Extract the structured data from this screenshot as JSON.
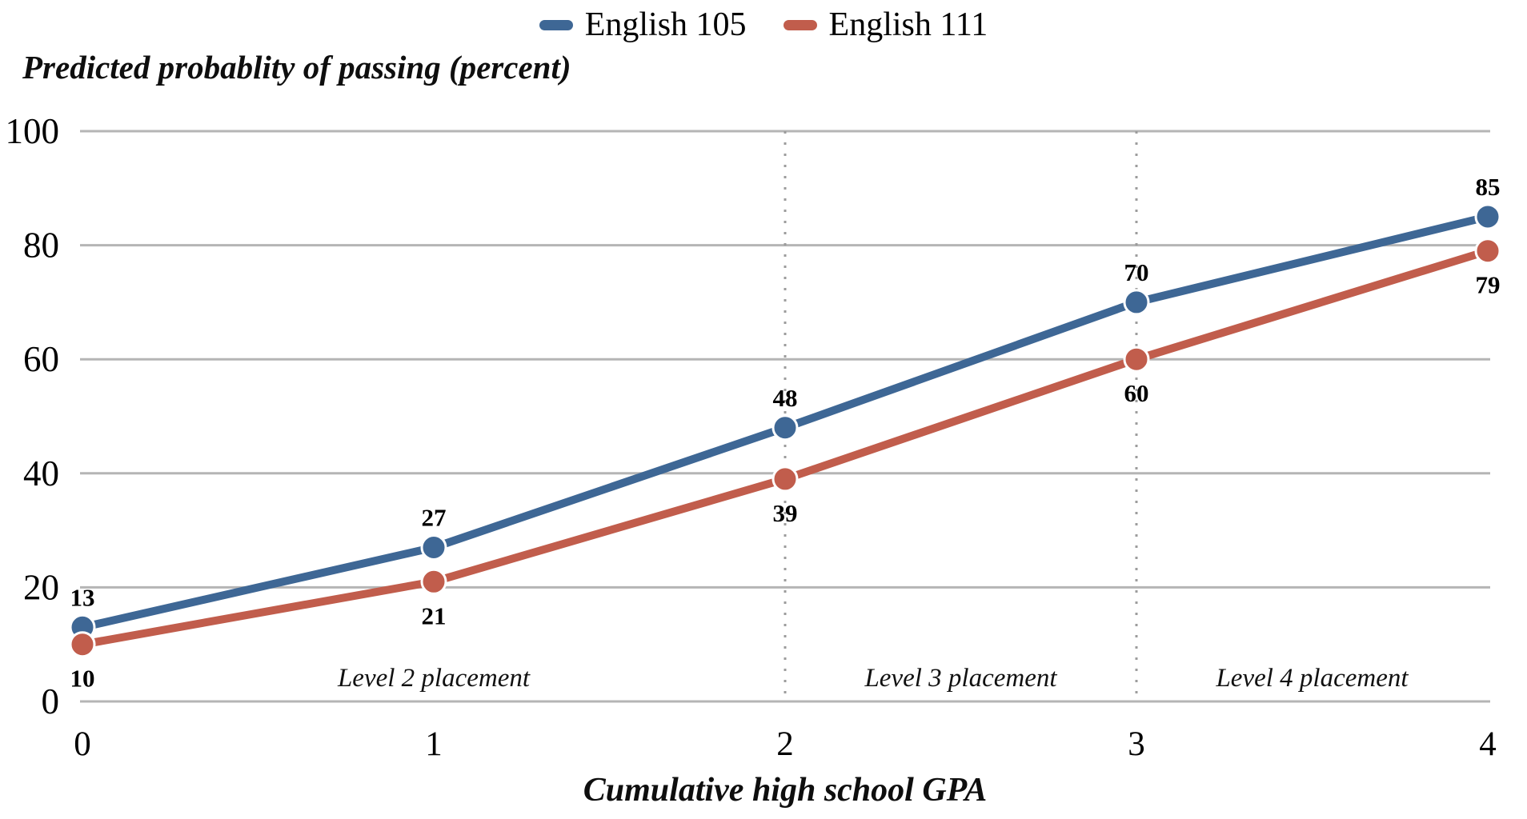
{
  "colors": {
    "grid": "#b5b5b5",
    "dotted": "#9c9c9c",
    "blue": "#3e6795",
    "red": "#c15d4c"
  },
  "chart_data": {
    "type": "line",
    "title": "",
    "xlabel": "Cumulative high school GPA",
    "ylabel": "Predicted probablity of passing (percent)",
    "x": [
      0,
      1,
      2,
      3,
      4
    ],
    "series": [
      {
        "name": "English 105",
        "color": "#3e6795",
        "values": [
          13,
          27,
          48,
          70,
          85
        ],
        "label_position": "above"
      },
      {
        "name": "English 111",
        "color": "#c15d4c",
        "values": [
          10,
          21,
          39,
          60,
          79
        ],
        "label_position": "below"
      }
    ],
    "xlim": [
      0,
      4
    ],
    "ylim": [
      0,
      100
    ],
    "x_ticks": [
      0,
      1,
      2,
      3,
      4
    ],
    "y_ticks": [
      0,
      20,
      40,
      60,
      80,
      100
    ],
    "grid": "horizontal",
    "legend_position": "top-center",
    "reference_lines_x": [
      2,
      3
    ],
    "annotations": [
      {
        "text": "Level 2 placement",
        "x": 1.0
      },
      {
        "text": "Level 3 placement",
        "x": 2.5
      },
      {
        "text": "Level 4 placement",
        "x": 3.5
      }
    ]
  }
}
